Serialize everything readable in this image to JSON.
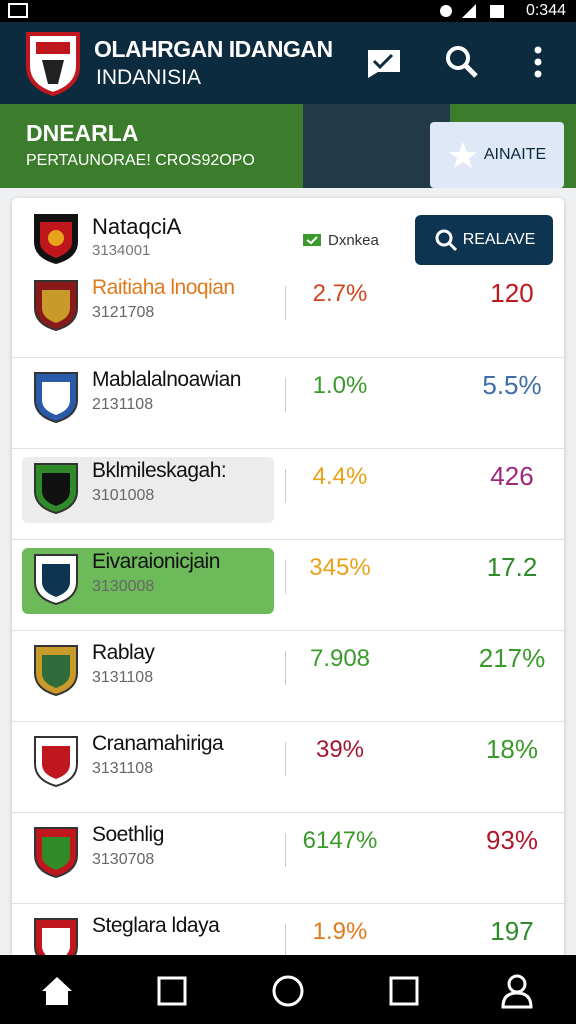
{
  "status_bar": {
    "time": "0:344"
  },
  "header": {
    "title": "OLAHRGAN IDANGAN",
    "subtitle": "INDANISIA"
  },
  "banner": {
    "title": "DNEARLA",
    "subtitle": "PERTAUNORAE! CROS92OPO",
    "button": "AINAITE"
  },
  "card": {
    "name": "NataqciA",
    "id": "3134001",
    "tag": "Dxnkea",
    "button": "REALAVE",
    "rows": [
      {
        "name": "Raitiaha lnoqian",
        "id": "3121708",
        "pct": "2.7%",
        "value": "120"
      },
      {
        "name": "Mablalalnoawian",
        "id": "2131108",
        "pct": "1.0%",
        "value": "5.5%"
      },
      {
        "name": "Bklmileskagah:",
        "id": "3101008",
        "pct": "4.4%",
        "value": "426"
      },
      {
        "name": "Eivaraionicjain",
        "id": "3130008",
        "pct": "345%",
        "value": "17.2"
      },
      {
        "name": "Rablay",
        "id": "3131108",
        "pct": "7.908",
        "value": "217%"
      },
      {
        "name": "Cranamahiriga",
        "id": "3131108",
        "pct": "39%",
        "value": "18%"
      },
      {
        "name": "Soethlig",
        "id": "3130708",
        "pct": "6147%",
        "value": "93%"
      },
      {
        "name": "Steglara ldaya",
        "id": "",
        "pct": "1.9%",
        "value": "197"
      }
    ]
  }
}
